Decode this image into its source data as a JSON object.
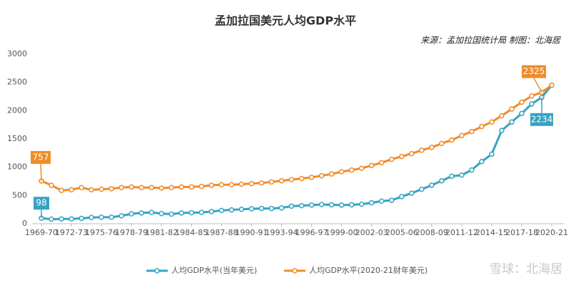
{
  "chart_data": {
    "type": "line",
    "title": "孟加拉国美元人均GDP水平",
    "source": "来源：孟加拉国统计局 制图：北海居",
    "watermark": "雪球：北海居",
    "categories": [
      "1969-70",
      null,
      null,
      "1972-73",
      null,
      null,
      "1975-76",
      null,
      null,
      "1978-79",
      null,
      null,
      "1981-82",
      null,
      null,
      "1984-85",
      null,
      null,
      "1987-88",
      null,
      null,
      "1990-91",
      null,
      null,
      "1993-94",
      null,
      null,
      "1996-97",
      null,
      null,
      "1999-00",
      null,
      null,
      "2002-03",
      null,
      null,
      "2005-06",
      null,
      null,
      "2008-09",
      null,
      null,
      "2011-12",
      null,
      null,
      "2014-15",
      null,
      null,
      "2017-18",
      null,
      null,
      "2020-21"
    ],
    "series": [
      {
        "name": "人均GDP水平(当年美元)",
        "color": "#34a3c4",
        "values": [
          98,
          80,
          85,
          85,
          95,
          110,
          115,
          115,
          140,
          175,
          190,
          200,
          180,
          170,
          190,
          195,
          200,
          215,
          235,
          245,
          255,
          265,
          270,
          270,
          280,
          310,
          320,
          330,
          340,
          335,
          330,
          335,
          345,
          370,
          400,
          415,
          480,
          540,
          610,
          680,
          760,
          840,
          860,
          950,
          1100,
          1230,
          1650,
          1800,
          1950,
          2120,
          2234,
          2450
        ]
      },
      {
        "name": "人均GDP水平(2020-21财年美元)",
        "color": "#f08c28",
        "values": [
          757,
          680,
          590,
          600,
          640,
          600,
          610,
          620,
          640,
          650,
          640,
          640,
          630,
          640,
          650,
          650,
          660,
          680,
          690,
          690,
          700,
          710,
          720,
          740,
          760,
          780,
          800,
          820,
          850,
          880,
          920,
          950,
          980,
          1030,
          1080,
          1140,
          1190,
          1240,
          1300,
          1350,
          1420,
          1480,
          1560,
          1630,
          1720,
          1800,
          1910,
          2030,
          2150,
          2260,
          2325,
          2450
        ]
      }
    ],
    "ylim": [
      0,
      3000
    ],
    "yticks": [
      0,
      500,
      1000,
      1500,
      2000,
      2500,
      3000
    ],
    "grid": false,
    "legend": "bottom"
  }
}
